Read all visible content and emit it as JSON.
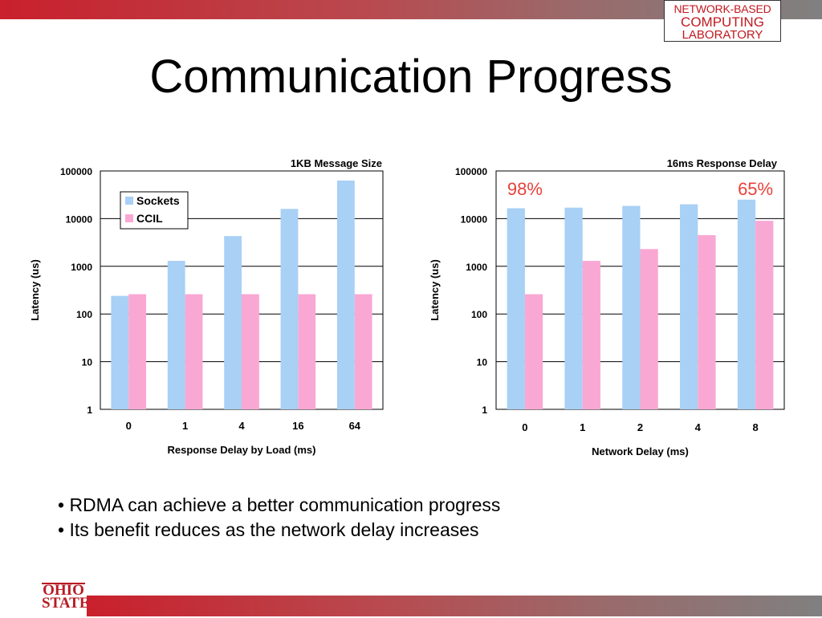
{
  "slide": {
    "title": "Communication Progress",
    "logo_top": [
      "NETWORK-BASED",
      "COMPUTING",
      "LABORATORY"
    ],
    "logo_bottom": [
      "OHIO",
      "STATE"
    ],
    "bullets": [
      "• RDMA can achieve a better communication progress",
      "• Its benefit reduces as the network delay increases"
    ]
  },
  "colors": {
    "sockets": "#a9d0f5",
    "ccil": "#f9a8d4",
    "annotation": "#e8413a",
    "brand_red": "#c0181f"
  },
  "chart_data": [
    {
      "type": "bar",
      "title": "1KB Message Size",
      "xlabel": "Response Delay by Load (ms)",
      "ylabel": "Latency (us)",
      "yscale": "log",
      "ylim": [
        1,
        100000
      ],
      "yticks": [
        "1",
        "10",
        "100",
        "1000",
        "10000",
        "100000"
      ],
      "categories": [
        "0",
        "1",
        "4",
        "16",
        "64"
      ],
      "legend": "top-left",
      "grid": true,
      "series": [
        {
          "name": "Sockets",
          "values": [
            240,
            1300,
            4300,
            16000,
            63000
          ]
        },
        {
          "name": "CCIL",
          "values": [
            260,
            260,
            260,
            260,
            260
          ]
        }
      ],
      "annotations": []
    },
    {
      "type": "bar",
      "title": "16ms Response Delay",
      "xlabel": "Network Delay (ms)",
      "ylabel": "Latency (us)",
      "yscale": "log",
      "ylim": [
        1,
        100000
      ],
      "yticks": [
        "1",
        "10",
        "100",
        "1000",
        "10000",
        "100000"
      ],
      "categories": [
        "0",
        "1",
        "2",
        "4",
        "8"
      ],
      "legend": "none",
      "grid": true,
      "series": [
        {
          "name": "Sockets",
          "values": [
            16500,
            17000,
            18500,
            20000,
            25000
          ]
        },
        {
          "name": "CCIL",
          "values": [
            260,
            1300,
            2300,
            4500,
            9000
          ]
        }
      ],
      "annotations": [
        {
          "text": "98%",
          "category": "0"
        },
        {
          "text": "65%",
          "category": "8"
        }
      ]
    }
  ]
}
